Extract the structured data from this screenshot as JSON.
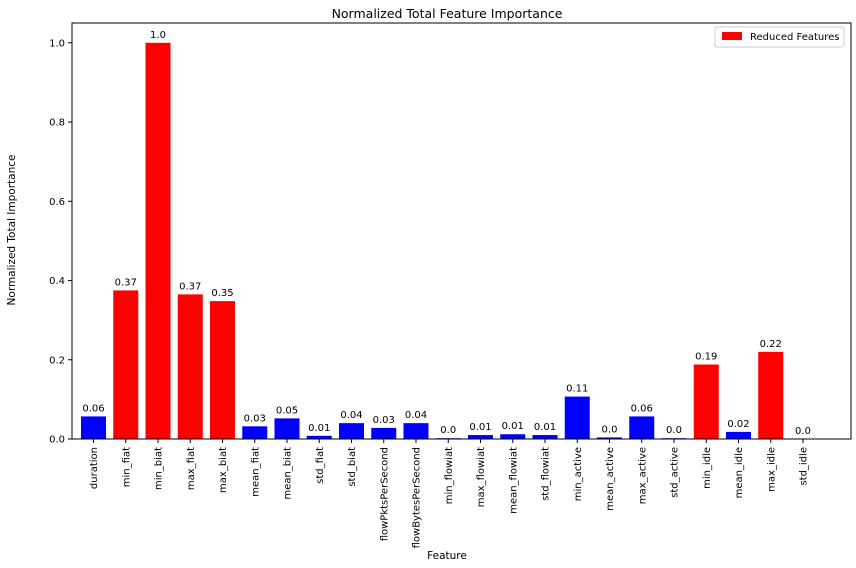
{
  "chart_data": {
    "type": "bar",
    "title": "Normalized Total Feature Importance",
    "xlabel": "Feature",
    "ylabel": "Normalized Total Importance",
    "ylim": [
      0,
      1.05
    ],
    "yticks": [
      "0.0",
      "0.2",
      "0.4",
      "0.6",
      "0.8",
      "1.0"
    ],
    "grid": false,
    "legend": {
      "placement": "top-right",
      "entries": [
        {
          "label": "Reduced Features",
          "color": "#ff0000"
        }
      ]
    },
    "colors": {
      "reduced": "#ff0000",
      "other": "#0000ff"
    },
    "categories": [
      "duration",
      "min_fiat",
      "min_biat",
      "max_fiat",
      "max_biat",
      "mean_fiat",
      "mean_biat",
      "std_fiat",
      "std_biat",
      "flowPktsPerSecond",
      "flowBytesPerSecond",
      "min_flowiat",
      "max_flowiat",
      "mean_flowiat",
      "std_flowiat",
      "min_active",
      "mean_active",
      "max_active",
      "std_active",
      "min_idle",
      "mean_idle",
      "max_idle",
      "std_idle"
    ],
    "values": [
      0.057,
      0.375,
      1.0,
      0.365,
      0.348,
      0.032,
      0.052,
      0.008,
      0.04,
      0.028,
      0.04,
      0.002,
      0.01,
      0.012,
      0.01,
      0.107,
      0.004,
      0.057,
      0.002,
      0.188,
      0.018,
      0.22,
      0.0005
    ],
    "labels": [
      "0.06",
      "0.37",
      "1.0",
      "0.37",
      "0.35",
      "0.03",
      "0.05",
      "0.01",
      "0.04",
      "0.03",
      "0.04",
      "0.0",
      "0.01",
      "0.01",
      "0.01",
      "0.11",
      "0.0",
      "0.06",
      "0.0",
      "0.19",
      "0.02",
      "0.22",
      "0.0"
    ],
    "reduced": [
      false,
      true,
      true,
      true,
      true,
      false,
      false,
      false,
      false,
      false,
      false,
      false,
      false,
      false,
      false,
      false,
      false,
      false,
      false,
      true,
      false,
      true,
      false
    ]
  }
}
